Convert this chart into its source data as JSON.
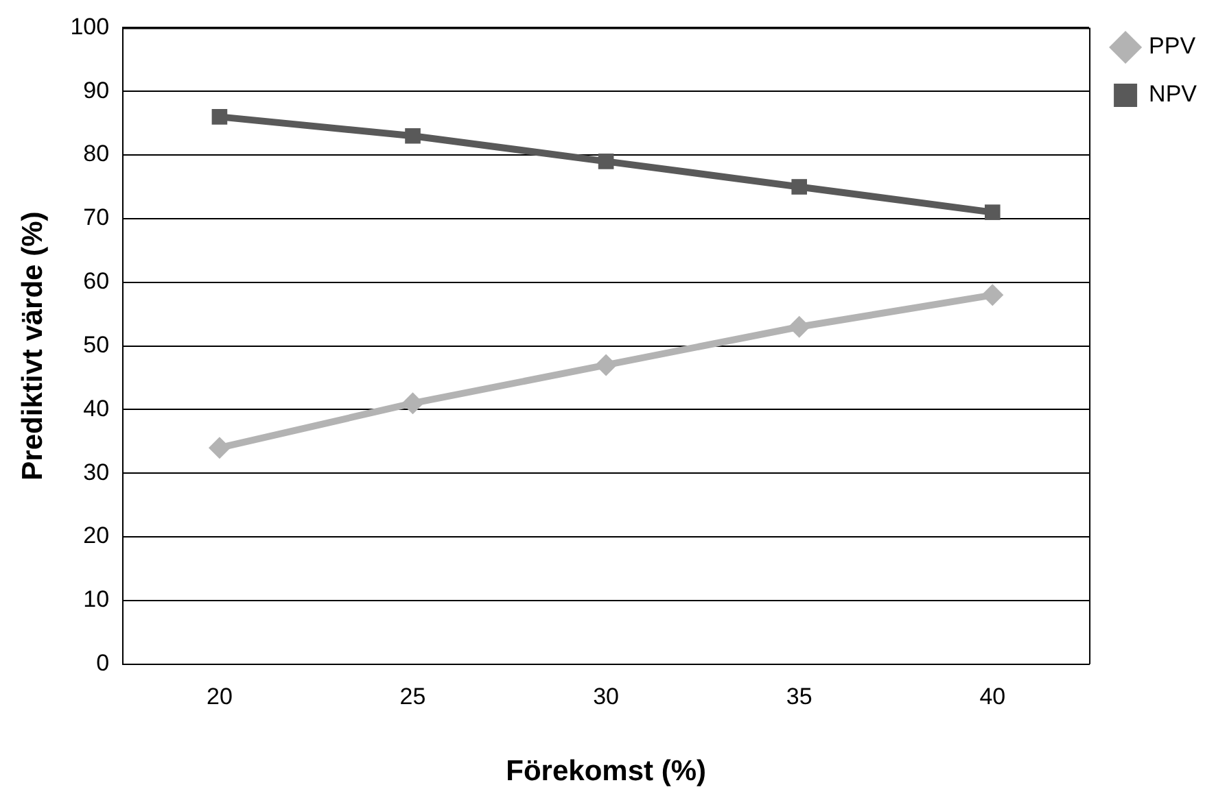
{
  "chart_data": {
    "type": "line",
    "xlabel": "Förekomst (%)",
    "ylabel": "Prediktivt värde (%)",
    "categories": [
      "20",
      "25",
      "30",
      "35",
      "40"
    ],
    "series": [
      {
        "name": "PPV",
        "color": "#b3b3b3",
        "marker": "diamond",
        "values": [
          34,
          41,
          47,
          53,
          58
        ]
      },
      {
        "name": "NPV",
        "color": "#595959",
        "marker": "square",
        "values": [
          86,
          83,
          79,
          75,
          71
        ]
      }
    ],
    "ylim": [
      0,
      100
    ],
    "yticks": [
      0,
      10,
      20,
      30,
      40,
      50,
      60,
      70,
      80,
      90,
      100
    ],
    "grid": "y",
    "legend": "top right",
    "line_style": "solid"
  }
}
